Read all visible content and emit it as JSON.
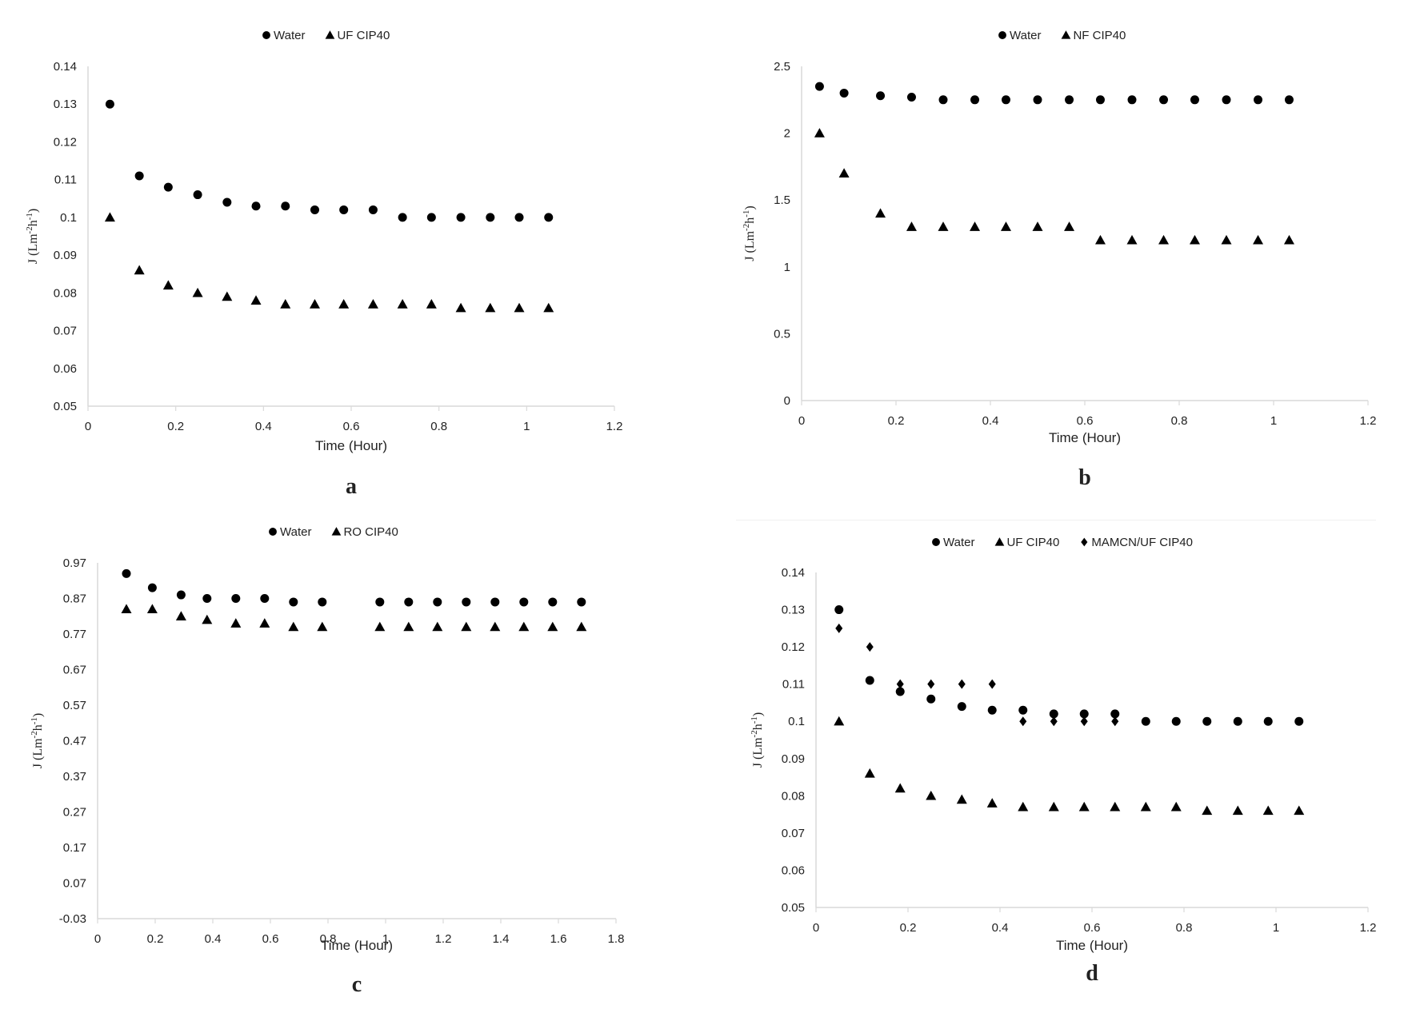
{
  "figure": {
    "panel_letters": [
      "a",
      "b",
      "c",
      "d"
    ]
  },
  "styles": {
    "axis_color": "#d9d9d9",
    "marker_color": "#000000",
    "text_color": "#222222"
  },
  "chart_data": [
    {
      "type": "scatter",
      "panel": "a",
      "xlabel": "Time (Hour)",
      "ylabel_main": "J (Lm",
      "ylabel_sup1": "-2",
      "ylabel_mid": "h",
      "ylabel_sup2": "-1",
      "ylabel_end": ")",
      "legend_position": "top",
      "xlim": [
        0,
        1.2
      ],
      "ylim": [
        0.05,
        0.14
      ],
      "xticks": [
        0,
        0.2,
        0.4,
        0.6,
        0.8,
        1,
        1.2
      ],
      "xtick_labels": [
        "0",
        "0.2",
        "0.4",
        "0.6",
        "0.8",
        "1",
        "1.2"
      ],
      "yticks": [
        0.05,
        0.06,
        0.07,
        0.08,
        0.09,
        0.1,
        0.11,
        0.12,
        0.13,
        0.14
      ],
      "ytick_labels": [
        "0.05",
        "0.06",
        "0.07",
        "0.08",
        "0.09",
        "0.1",
        "0.11",
        "0.12",
        "0.13",
        "0.14"
      ],
      "series": [
        {
          "name": "Water",
          "marker": "circle",
          "x": [
            0.05,
            0.117,
            0.183,
            0.25,
            0.317,
            0.383,
            0.45,
            0.517,
            0.583,
            0.65,
            0.717,
            0.783,
            0.85,
            0.917,
            0.983,
            1.05
          ],
          "y": [
            0.13,
            0.111,
            0.108,
            0.106,
            0.104,
            0.103,
            0.103,
            0.102,
            0.102,
            0.102,
            0.1,
            0.1,
            0.1,
            0.1,
            0.1,
            0.1
          ]
        },
        {
          "name": "UF CIP40",
          "marker": "triangle",
          "x": [
            0.05,
            0.117,
            0.183,
            0.25,
            0.317,
            0.383,
            0.45,
            0.517,
            0.583,
            0.65,
            0.717,
            0.783,
            0.85,
            0.917,
            0.983,
            1.05
          ],
          "y": [
            0.1,
            0.086,
            0.082,
            0.08,
            0.079,
            0.078,
            0.077,
            0.077,
            0.077,
            0.077,
            0.077,
            0.077,
            0.076,
            0.076,
            0.076,
            0.076
          ]
        }
      ]
    },
    {
      "type": "scatter",
      "panel": "b",
      "xlabel": "Time (Hour)",
      "ylabel_main": "J (Lm",
      "ylabel_sup1": "-2",
      "ylabel_mid": "h",
      "ylabel_sup2": "-1",
      "ylabel_end": ")",
      "legend_position": "top",
      "xlim": [
        0,
        1.2
      ],
      "ylim": [
        0,
        2.5
      ],
      "xticks": [
        0,
        0.2,
        0.4,
        0.6,
        0.8,
        1,
        1.2
      ],
      "xtick_labels": [
        "0",
        "0.2",
        "0.4",
        "0.6",
        "0.8",
        "1",
        "1.2"
      ],
      "yticks": [
        0,
        0.5,
        1,
        1.5,
        2,
        2.5
      ],
      "ytick_labels": [
        "0",
        "0.5",
        "1",
        "1.5",
        "2",
        "2.5"
      ],
      "series": [
        {
          "name": "Water",
          "marker": "circle",
          "x": [
            0.038,
            0.09,
            0.167,
            0.233,
            0.3,
            0.367,
            0.433,
            0.5,
            0.567,
            0.633,
            0.7,
            0.767,
            0.833,
            0.9,
            0.967,
            1.033
          ],
          "y": [
            2.35,
            2.3,
            2.28,
            2.27,
            2.25,
            2.25,
            2.25,
            2.25,
            2.25,
            2.25,
            2.25,
            2.25,
            2.25,
            2.25,
            2.25,
            2.25
          ]
        },
        {
          "name": "NF CIP40",
          "marker": "triangle",
          "x": [
            0.038,
            0.09,
            0.167,
            0.233,
            0.3,
            0.367,
            0.433,
            0.5,
            0.567,
            0.633,
            0.7,
            0.767,
            0.833,
            0.9,
            0.967,
            1.033
          ],
          "y": [
            2.0,
            1.7,
            1.4,
            1.3,
            1.3,
            1.3,
            1.3,
            1.3,
            1.3,
            1.2,
            1.2,
            1.2,
            1.2,
            1.2,
            1.2,
            1.2
          ]
        }
      ]
    },
    {
      "type": "scatter",
      "panel": "c",
      "xlabel": "Time (Hour)",
      "ylabel_main": "J (Lm",
      "ylabel_sup1": "-2",
      "ylabel_mid": "h",
      "ylabel_sup2": "-1",
      "ylabel_end": ")",
      "legend_position": "top",
      "xlim": [
        0,
        1.8
      ],
      "ylim": [
        -0.03,
        0.97
      ],
      "xticks": [
        0,
        0.2,
        0.4,
        0.6,
        0.8,
        1,
        1.2,
        1.4,
        1.6,
        1.8
      ],
      "xtick_labels": [
        "0",
        "0.2",
        "0.4",
        "0.6",
        "0.8",
        "1",
        "1.2",
        "1.4",
        "1.6",
        "1.8"
      ],
      "yticks": [
        -0.03,
        0.07,
        0.17,
        0.27,
        0.37,
        0.47,
        0.57,
        0.67,
        0.77,
        0.87,
        0.97
      ],
      "ytick_labels": [
        "-0.03",
        "0.07",
        "0.17",
        "0.27",
        "0.37",
        "0.47",
        "0.57",
        "0.67",
        "0.77",
        "0.87",
        "0.97"
      ],
      "series": [
        {
          "name": "Water",
          "marker": "circle",
          "x": [
            0.1,
            0.19,
            0.29,
            0.38,
            0.48,
            0.58,
            0.68,
            0.78,
            0.98,
            1.08,
            1.18,
            1.28,
            1.38,
            1.48,
            1.58,
            1.68
          ],
          "y": [
            0.94,
            0.9,
            0.88,
            0.87,
            0.87,
            0.87,
            0.86,
            0.86,
            0.86,
            0.86,
            0.86,
            0.86,
            0.86,
            0.86,
            0.86,
            0.86
          ]
        },
        {
          "name": "RO CIP40",
          "marker": "triangle",
          "x": [
            0.1,
            0.19,
            0.29,
            0.38,
            0.48,
            0.58,
            0.68,
            0.78,
            0.98,
            1.08,
            1.18,
            1.28,
            1.38,
            1.48,
            1.58,
            1.68
          ],
          "y": [
            0.84,
            0.84,
            0.82,
            0.81,
            0.8,
            0.8,
            0.79,
            0.79,
            0.79,
            0.79,
            0.79,
            0.79,
            0.79,
            0.79,
            0.79,
            0.79
          ]
        }
      ]
    },
    {
      "type": "scatter",
      "panel": "d",
      "xlabel": "Time (Hour)",
      "ylabel_main": "J (Lm",
      "ylabel_sup1": "-2",
      "ylabel_mid": "h",
      "ylabel_sup2": "-1",
      "ylabel_end": ")",
      "legend_position": "top",
      "xlim": [
        0,
        1.2
      ],
      "ylim": [
        0.05,
        0.14
      ],
      "xticks": [
        0,
        0.2,
        0.4,
        0.6,
        0.8,
        1,
        1.2
      ],
      "xtick_labels": [
        "0",
        "0.2",
        "0.4",
        "0.6",
        "0.8",
        "1",
        "1.2"
      ],
      "yticks": [
        0.05,
        0.06,
        0.07,
        0.08,
        0.09,
        0.1,
        0.11,
        0.12,
        0.13,
        0.14
      ],
      "ytick_labels": [
        "0.05",
        "0.06",
        "0.07",
        "0.08",
        "0.09",
        "0.1",
        "0.11",
        "0.12",
        "0.13",
        "0.14"
      ],
      "series": [
        {
          "name": "Water",
          "marker": "circle",
          "x": [
            0.05,
            0.117,
            0.183,
            0.25,
            0.317,
            0.383,
            0.45,
            0.517,
            0.583,
            0.65,
            0.717,
            0.783,
            0.85,
            0.917,
            0.983,
            1.05
          ],
          "y": [
            0.13,
            0.111,
            0.108,
            0.106,
            0.104,
            0.103,
            0.103,
            0.102,
            0.102,
            0.102,
            0.1,
            0.1,
            0.1,
            0.1,
            0.1,
            0.1
          ]
        },
        {
          "name": "UF CIP40",
          "marker": "triangle",
          "x": [
            0.05,
            0.117,
            0.183,
            0.25,
            0.317,
            0.383,
            0.45,
            0.517,
            0.583,
            0.65,
            0.717,
            0.783,
            0.85,
            0.917,
            0.983,
            1.05
          ],
          "y": [
            0.1,
            0.086,
            0.082,
            0.08,
            0.079,
            0.078,
            0.077,
            0.077,
            0.077,
            0.077,
            0.077,
            0.077,
            0.076,
            0.076,
            0.076,
            0.076
          ]
        },
        {
          "name": "MAMCN/UF CIP40",
          "marker": "diamond",
          "x": [
            0.05,
            0.117,
            0.183,
            0.25,
            0.317,
            0.383,
            0.45,
            0.517,
            0.583,
            0.65
          ],
          "y": [
            0.125,
            0.12,
            0.11,
            0.11,
            0.11,
            0.11,
            0.1,
            0.1,
            0.1,
            0.1
          ]
        }
      ]
    }
  ]
}
